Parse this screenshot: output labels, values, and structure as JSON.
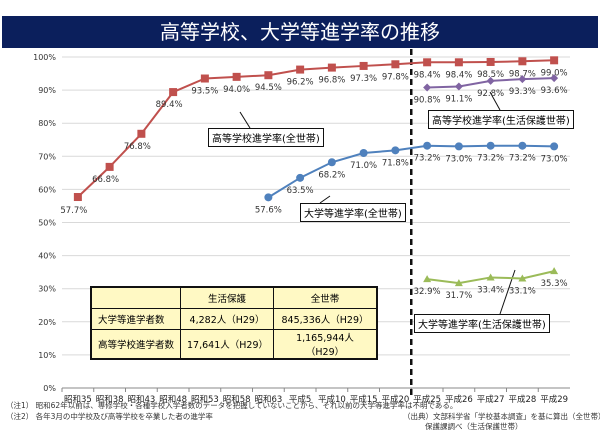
{
  "title": "高等学校、大学等進学率の推移",
  "chart_data": {
    "type": "line",
    "title": "高等学校、大学等進学率の推移",
    "ylim": [
      0,
      100
    ],
    "yticks": [
      "0%",
      "10%",
      "20%",
      "30%",
      "40%",
      "50%",
      "60%",
      "70%",
      "80%",
      "90%",
      "100%"
    ],
    "categories": [
      "昭和35",
      "昭和38",
      "昭和43",
      "昭和48",
      "昭和53",
      "昭和58",
      "昭和63",
      "平成5",
      "平成10",
      "平成15",
      "平成20",
      "平成25",
      "平成26",
      "平成27",
      "平成28",
      "平成29"
    ],
    "series": [
      {
        "name": "高等学校進学率(全世帯)",
        "color": "#c0504d",
        "marker": "square",
        "values": [
          57.7,
          66.8,
          76.8,
          89.4,
          93.5,
          94.0,
          94.5,
          96.2,
          96.8,
          97.3,
          97.8,
          98.4,
          98.4,
          98.5,
          98.7,
          99.0
        ]
      },
      {
        "name": "大学等進学率(全世帯)",
        "color": "#4f81bd",
        "marker": "circle",
        "values": [
          null,
          null,
          null,
          null,
          null,
          null,
          57.6,
          63.5,
          68.2,
          71.0,
          71.8,
          73.2,
          73.0,
          73.2,
          73.2,
          73.0
        ]
      },
      {
        "name": "高等学校進学率(生活保護世帯)",
        "color": "#8064a2",
        "marker": "diamond",
        "values": [
          null,
          null,
          null,
          null,
          null,
          null,
          null,
          null,
          null,
          null,
          null,
          90.8,
          91.1,
          92.8,
          93.3,
          93.6
        ]
      },
      {
        "name": "大学等進学率(生活保護世帯)",
        "color": "#9bbb59",
        "marker": "triangle",
        "values": [
          null,
          null,
          null,
          null,
          null,
          null,
          null,
          null,
          null,
          null,
          null,
          32.9,
          31.7,
          33.4,
          33.1,
          35.3
        ]
      }
    ]
  },
  "table": {
    "headers": [
      "",
      "生活保護",
      "全世帯"
    ],
    "rows": [
      [
        "大学等進学者数",
        "4,282人（H29）",
        "845,336人（H29）"
      ],
      [
        "高等学校進学者数",
        "17,641人（H29）",
        "1,165,944人（H29）"
      ]
    ]
  },
  "notes": {
    "n1": "（注1） 昭和62年以前は、専修学校・各種学校入学者数のデータを把握していないことから、それ以前の大学等進学率は不明である。",
    "n2": "（注2） 各年3月の中学校及び高等学校を卒業した者の進学率",
    "src1": "（出典）文部科学省「学校基本調査」を基に算出（全世帯）",
    "src2": "保護課調べ（生活保護世帯）"
  }
}
